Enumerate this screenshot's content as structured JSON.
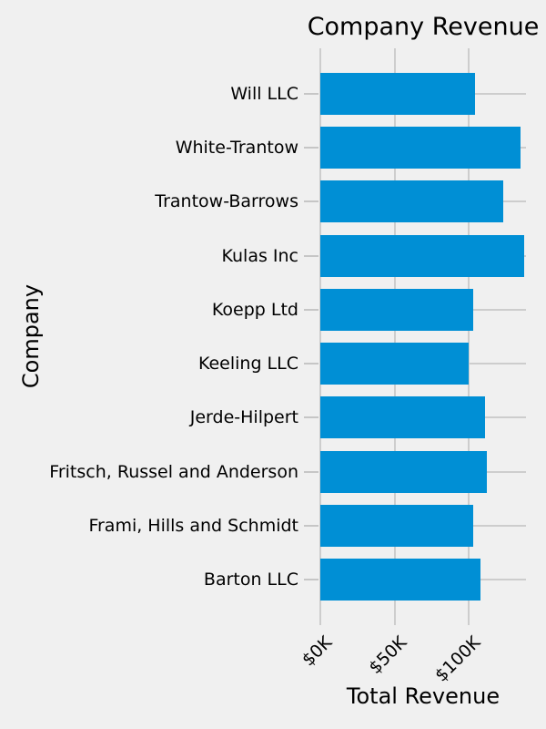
{
  "chart_data": {
    "type": "bar",
    "orientation": "horizontal",
    "title": "Company Revenue",
    "xlabel": "Total Revenue",
    "ylabel": "Company",
    "categories": [
      "Will LLC",
      "White-Trantow",
      "Trantow-Barrows",
      "Kulas Inc",
      "Koepp Ltd",
      "Keeling LLC",
      "Jerde-Hilpert",
      "Fritsch, Russel and Anderson",
      "Frami, Hills and Schmidt",
      "Barton LLC"
    ],
    "values_thousands": [
      104,
      135,
      123,
      137,
      103,
      100,
      111,
      112,
      103,
      108
    ],
    "value_unit": "$K",
    "x_ticks": [
      {
        "value": 0,
        "label": "$0K"
      },
      {
        "value": 50,
        "label": "$50K"
      },
      {
        "value": 100,
        "label": "$100K"
      }
    ],
    "xlim": [
      0,
      138.4
    ],
    "grid": true,
    "legend": null,
    "colors": {
      "bar": "#008fd5",
      "background": "#f0f0f0",
      "gridline": "#cdcdcd",
      "tick": "#c6c6c6",
      "text": "#000000"
    }
  }
}
